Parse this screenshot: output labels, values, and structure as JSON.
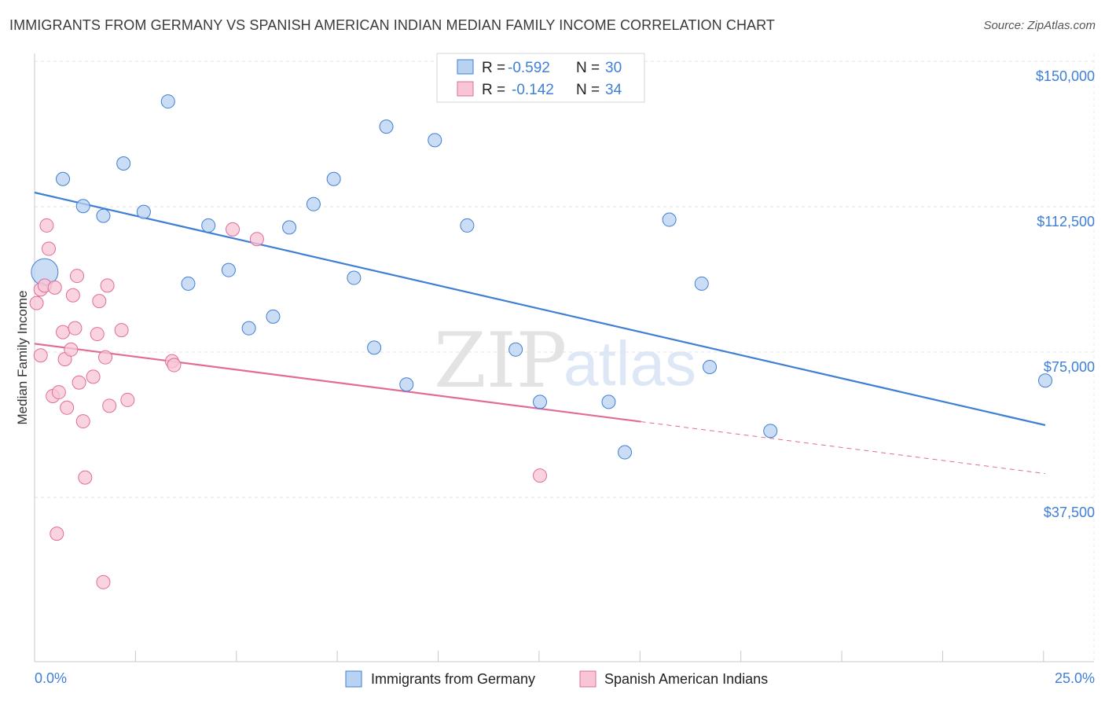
{
  "header": {
    "title": "IMMIGRANTS FROM GERMANY VS SPANISH AMERICAN INDIAN MEDIAN FAMILY INCOME CORRELATION CHART",
    "source": "Source: ZipAtlas.com"
  },
  "watermark": {
    "zip": "ZIP",
    "atlas": "atlas"
  },
  "colors": {
    "blue": "#3f7fd4",
    "blue_fill": "#b8d2f2",
    "pink": "#e06c99",
    "pink_fill": "#f7c5d6",
    "grid": "#e3e3e3"
  },
  "legend": {
    "rows": [
      {
        "r_label": "R = ",
        "r_value": "-0.592",
        "n_label": "N = ",
        "n_value": "30"
      },
      {
        "r_label": "R = ",
        "r_value": "-0.142",
        "n_label": "N = ",
        "n_value": "34"
      }
    ]
  },
  "chart_data": {
    "type": "scatter",
    "title": "IMMIGRANTS FROM GERMANY VS SPANISH AMERICAN INDIAN MEDIAN FAMILY INCOME CORRELATION CHART",
    "xlabel": "",
    "ylabel": "Median Family Income",
    "xlim": [
      0,
      25
    ],
    "ylim": [
      0,
      155000
    ],
    "x_tick_labels": [
      "0.0%",
      "25.0%"
    ],
    "y_ticks": [
      37500,
      75000,
      112500,
      150000
    ],
    "y_tick_labels": [
      "$37,500",
      "$75,000",
      "$112,500",
      "$150,000"
    ],
    "series": [
      {
        "name": "Immigrants from Germany",
        "color": "blue",
        "points": [
          {
            "x": 0.25,
            "y": 99500,
            "big": true
          },
          {
            "x": 0.7,
            "y": 123500
          },
          {
            "x": 1.2,
            "y": 116500
          },
          {
            "x": 1.7,
            "y": 114000
          },
          {
            "x": 2.2,
            "y": 127500
          },
          {
            "x": 2.7,
            "y": 115000
          },
          {
            "x": 3.3,
            "y": 143500
          },
          {
            "x": 3.8,
            "y": 96500
          },
          {
            "x": 4.3,
            "y": 111500
          },
          {
            "x": 4.8,
            "y": 100000
          },
          {
            "x": 5.3,
            "y": 85000
          },
          {
            "x": 5.9,
            "y": 88000
          },
          {
            "x": 6.3,
            "y": 111000
          },
          {
            "x": 6.9,
            "y": 117000
          },
          {
            "x": 7.4,
            "y": 123500
          },
          {
            "x": 7.9,
            "y": 98000
          },
          {
            "x": 8.4,
            "y": 80000
          },
          {
            "x": 8.7,
            "y": 137000
          },
          {
            "x": 9.2,
            "y": 70500
          },
          {
            "x": 9.9,
            "y": 133500
          },
          {
            "x": 10.7,
            "y": 111500
          },
          {
            "x": 11.9,
            "y": 79500
          },
          {
            "x": 12.5,
            "y": 66000
          },
          {
            "x": 14.2,
            "y": 66000
          },
          {
            "x": 14.6,
            "y": 53000
          },
          {
            "x": 15.7,
            "y": 113000
          },
          {
            "x": 16.5,
            "y": 96500
          },
          {
            "x": 16.7,
            "y": 75000
          },
          {
            "x": 18.2,
            "y": 58500
          },
          {
            "x": 25.0,
            "y": 71500
          }
        ],
        "trend": {
          "x0": 0,
          "y0": 120000,
          "x1": 25.0,
          "y1": 60000,
          "solid_until": 25.0
        }
      },
      {
        "name": "Spanish American Indians",
        "color": "pink",
        "points": [
          {
            "x": 0.05,
            "y": 91500
          },
          {
            "x": 0.15,
            "y": 95000
          },
          {
            "x": 0.15,
            "y": 78000
          },
          {
            "x": 0.25,
            "y": 96000
          },
          {
            "x": 0.3,
            "y": 111500
          },
          {
            "x": 0.35,
            "y": 105500
          },
          {
            "x": 0.45,
            "y": 67500
          },
          {
            "x": 0.5,
            "y": 95500
          },
          {
            "x": 0.55,
            "y": 32000
          },
          {
            "x": 0.6,
            "y": 68500
          },
          {
            "x": 0.7,
            "y": 84000
          },
          {
            "x": 0.75,
            "y": 77000
          },
          {
            "x": 0.8,
            "y": 64500
          },
          {
            "x": 0.9,
            "y": 79500
          },
          {
            "x": 0.95,
            "y": 93500
          },
          {
            "x": 1.0,
            "y": 85000
          },
          {
            "x": 1.05,
            "y": 98500
          },
          {
            "x": 1.1,
            "y": 71000
          },
          {
            "x": 1.2,
            "y": 61000
          },
          {
            "x": 1.25,
            "y": 46500
          },
          {
            "x": 1.45,
            "y": 72500
          },
          {
            "x": 1.55,
            "y": 83500
          },
          {
            "x": 1.6,
            "y": 92000
          },
          {
            "x": 1.7,
            "y": 19500
          },
          {
            "x": 1.75,
            "y": 77500
          },
          {
            "x": 1.8,
            "y": 96000
          },
          {
            "x": 1.85,
            "y": 65000
          },
          {
            "x": 2.15,
            "y": 84500
          },
          {
            "x": 2.3,
            "y": 66500
          },
          {
            "x": 3.4,
            "y": 76500
          },
          {
            "x": 3.45,
            "y": 75500
          },
          {
            "x": 4.9,
            "y": 110500
          },
          {
            "x": 5.5,
            "y": 108000
          },
          {
            "x": 12.5,
            "y": 47000
          }
        ],
        "trend": {
          "x0": 0,
          "y0": 81000,
          "x1": 25.0,
          "y1": 47500,
          "solid_until": 15.0
        }
      }
    ]
  },
  "bottom_legend": [
    {
      "label": "Immigrants from Germany",
      "color": "blue"
    },
    {
      "label": "Spanish American Indians",
      "color": "pink"
    }
  ]
}
